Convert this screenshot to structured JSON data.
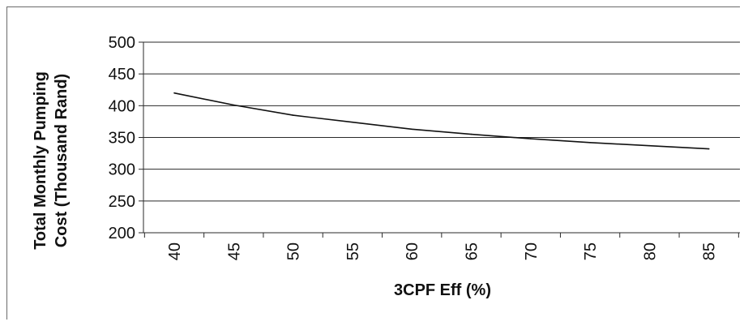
{
  "chart_data": {
    "type": "line",
    "title": "",
    "xlabel": "3CPF Eff (%)",
    "ylabel_lines": [
      "Total Monthly Pumping",
      "Cost (Thousand Rand)"
    ],
    "x": [
      40,
      45,
      50,
      55,
      60,
      65,
      70,
      75,
      80,
      85
    ],
    "x_tick_labels": [
      "40",
      "45",
      "50",
      "55",
      "60",
      "65",
      "70",
      "75",
      "80",
      "85"
    ],
    "y_tick_labels": [
      "500",
      "450",
      "400",
      "350",
      "300",
      "250",
      "200"
    ],
    "y_ticks": [
      500,
      450,
      400,
      350,
      300,
      250,
      200
    ],
    "ylim": [
      200,
      500
    ],
    "grid": true,
    "legend": "none",
    "series": [
      {
        "values": [
          420,
          401,
          385,
          374,
          363,
          355,
          348,
          342,
          337,
          332
        ],
        "color": "#111111"
      }
    ]
  }
}
